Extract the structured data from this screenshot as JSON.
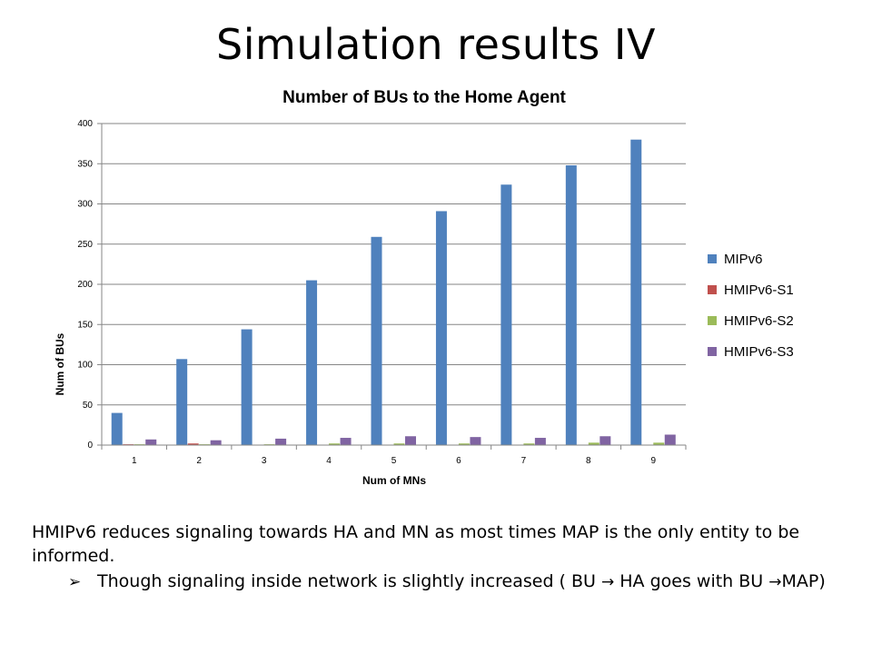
{
  "slide": {
    "title": "Simulation results IV",
    "paragraph": "HMIPv6 reduces signaling towards HA and MN as most times MAP is the only entity to be informed.",
    "bullet_icon": "arrow-bullet-icon",
    "bullet": {
      "part1": "Though signaling inside network is slightly increased ( BU ",
      "arrow1": "→",
      "part2": " HA goes with BU",
      "arrow2": "→",
      "part3": "MAP)"
    }
  },
  "chart_data": {
    "type": "bar",
    "title": "Number of BUs to the Home Agent",
    "xlabel": "Num of MNs",
    "ylabel": "Num of BUs",
    "categories": [
      "1",
      "2",
      "3",
      "4",
      "5",
      "6",
      "7",
      "8",
      "9"
    ],
    "ylim": [
      0,
      400
    ],
    "yticks": [
      "0",
      "50",
      "100",
      "150",
      "200",
      "250",
      "300",
      "350",
      "400"
    ],
    "grid": true,
    "legend_position": "right",
    "series": [
      {
        "name": "MIPv6",
        "color": "#4F81BD",
        "values": [
          40,
          107,
          144,
          205,
          259,
          291,
          324,
          348,
          380
        ]
      },
      {
        "name": "HMIPv6-S1",
        "color": "#C0504D",
        "values": [
          1,
          2,
          0,
          0,
          0,
          0,
          0,
          0,
          0
        ]
      },
      {
        "name": "HMIPv6-S2",
        "color": "#9BBB59",
        "values": [
          1,
          1,
          1,
          2,
          2,
          2,
          2,
          3,
          3
        ]
      },
      {
        "name": "HMIPv6-S3",
        "color": "#8064A2",
        "values": [
          7,
          6,
          8,
          9,
          11,
          10,
          9,
          11,
          13
        ]
      }
    ]
  }
}
